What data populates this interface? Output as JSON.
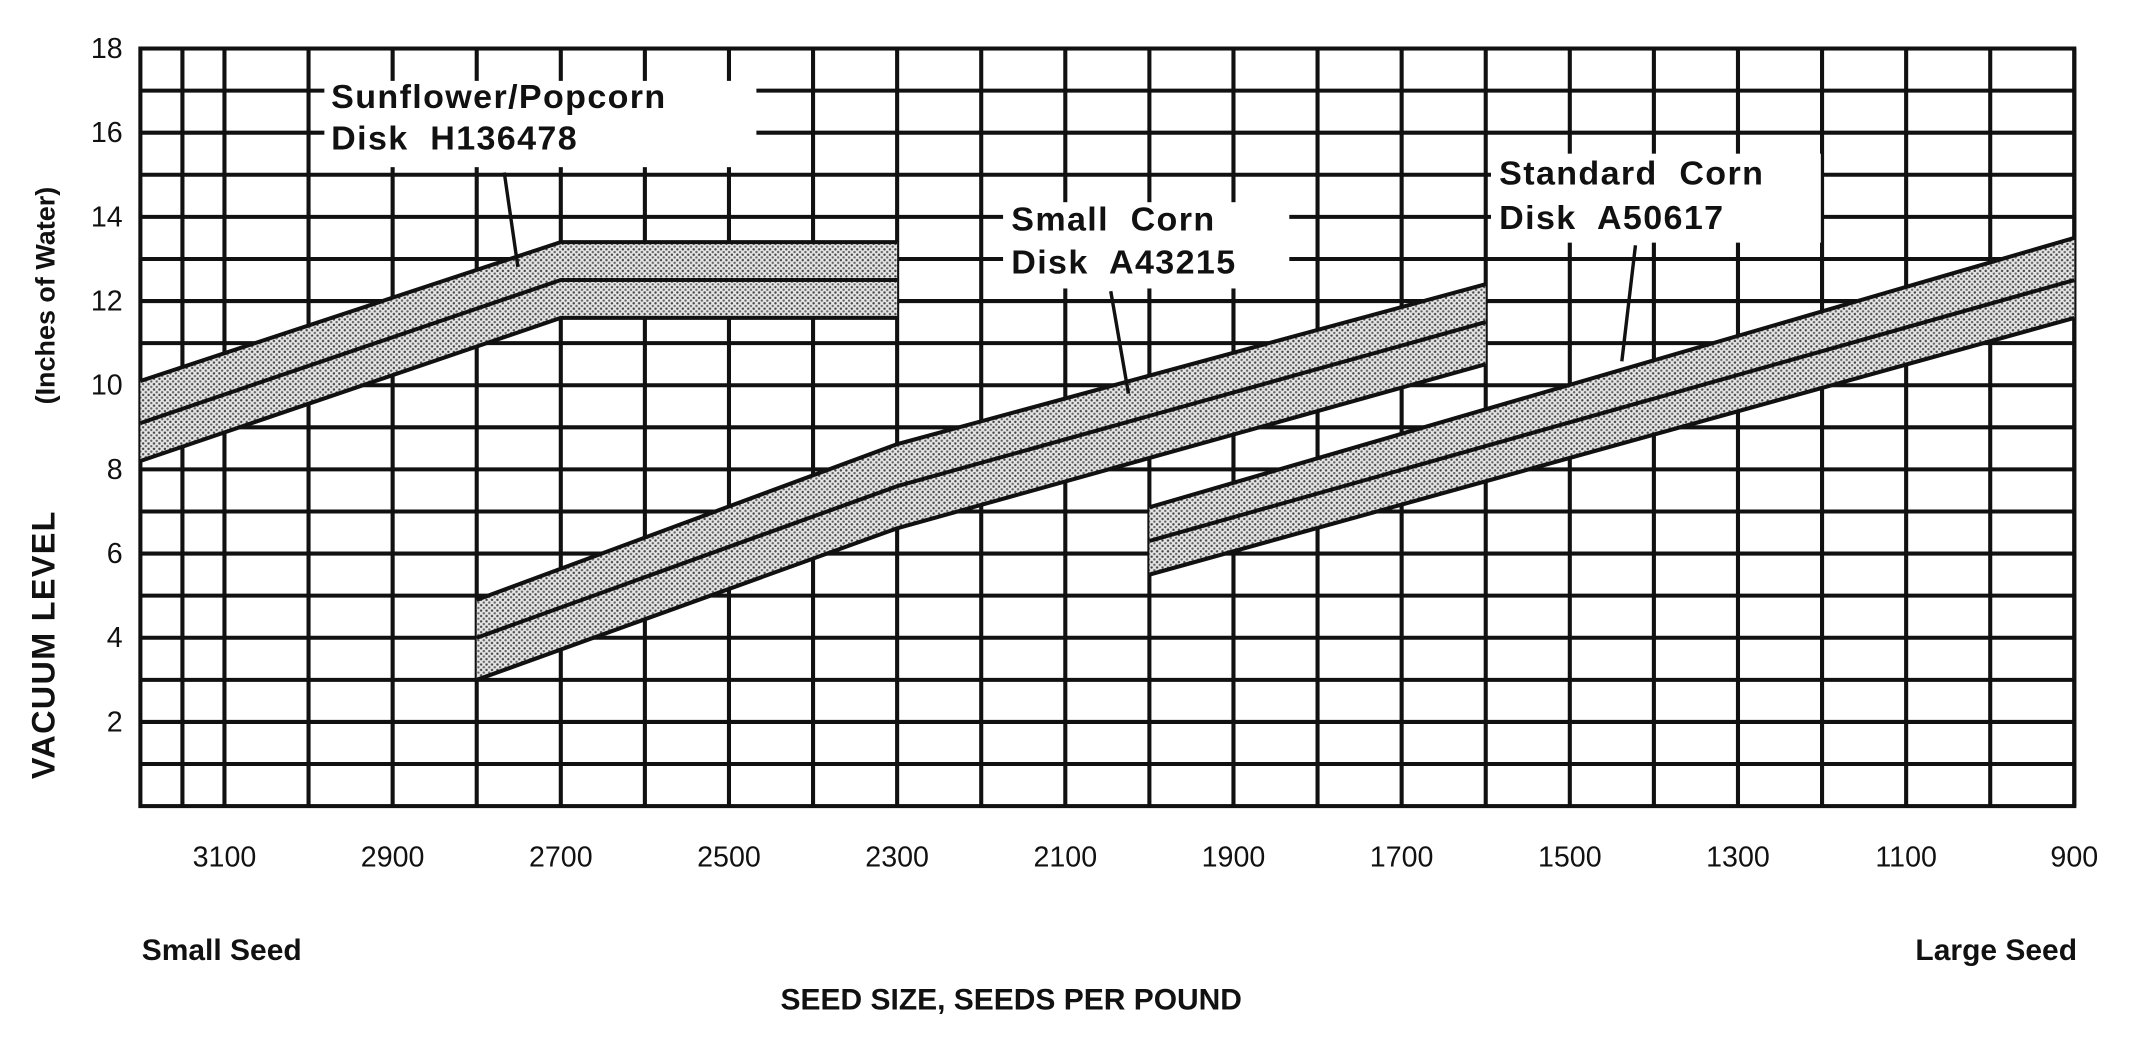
{
  "chart_data": {
    "type": "band",
    "xlim": [
      3200,
      900
    ],
    "xticks": [
      3100,
      2900,
      2700,
      2500,
      2300,
      2100,
      1900,
      1700,
      1500,
      1300,
      1100,
      900
    ],
    "ylim": [
      0,
      18
    ],
    "yticks": [
      2,
      4,
      6,
      8,
      10,
      12,
      14,
      16,
      18
    ],
    "grid": true,
    "xlabel": "SEED SIZE, SEEDS PER POUND",
    "xlabel_left": "Small Seed",
    "xlabel_right": "Large Seed",
    "ylabel": {
      "main": "VACUUM LEVEL",
      "unit": "(Inches of Water)"
    },
    "bands": [
      {
        "label": [
          "Sunflower/Popcorn",
          "Disk  H136478"
        ],
        "x": [
          3200,
          2700,
          2300
        ],
        "upper": [
          10.1,
          13.4,
          13.4
        ],
        "middle": [
          9.1,
          12.5,
          12.5
        ],
        "lower": [
          8.2,
          11.6,
          11.6
        ]
      },
      {
        "label": [
          "Small  Corn",
          "Disk  A43215"
        ],
        "x": [
          2800,
          2300,
          1600
        ],
        "upper": [
          4.9,
          8.6,
          12.4
        ],
        "middle": [
          4.0,
          7.6,
          11.5
        ],
        "lower": [
          3.0,
          6.6,
          10.5
        ]
      },
      {
        "label": [
          "Standard  Corn",
          "Disk  A50617"
        ],
        "x": [
          2000,
          900
        ],
        "upper": [
          7.1,
          13.5
        ],
        "middle": [
          6.3,
          12.5
        ],
        "lower": [
          5.5,
          11.6
        ]
      }
    ]
  }
}
